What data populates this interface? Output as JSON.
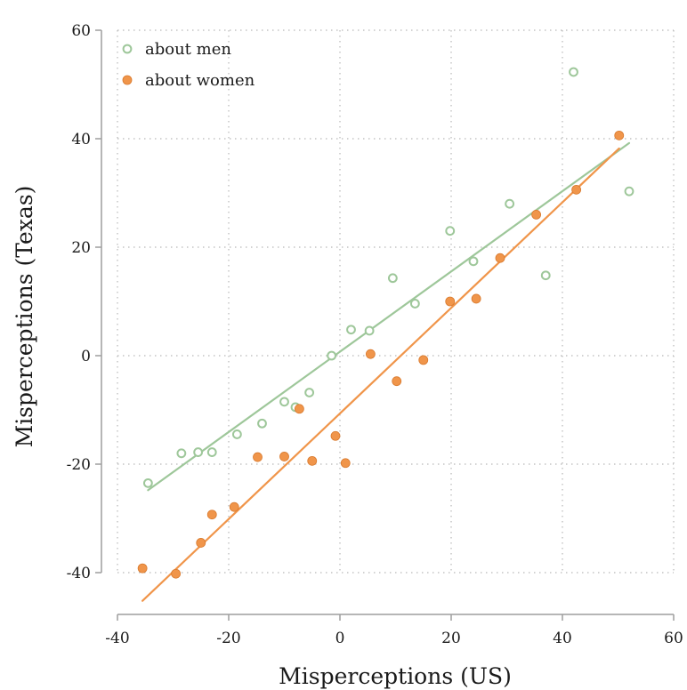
{
  "chart_data": {
    "type": "scatter",
    "xlabel": "Misperceptions (US)",
    "ylabel": "Misperceptions (Texas)",
    "xlim": [
      -40,
      60
    ],
    "ylim": [
      -40,
      60
    ],
    "xticks": [
      -40,
      -20,
      0,
      20,
      40,
      60
    ],
    "yticks": [
      -40,
      -20,
      0,
      20,
      40,
      60
    ],
    "grid": true,
    "legend_position": "top-left",
    "series": [
      {
        "name": "about men",
        "marker": "hollow-circle",
        "color": "#9ec79a",
        "points": [
          [
            -34.5,
            -23.5
          ],
          [
            -28.5,
            -18
          ],
          [
            -25.5,
            -17.8
          ],
          [
            -23,
            -17.8
          ],
          [
            -18.5,
            -14.5
          ],
          [
            -14,
            -12.5
          ],
          [
            -10,
            -8.5
          ],
          [
            -8,
            -9.5
          ],
          [
            -5.5,
            -6.8
          ],
          [
            -1.5,
            0
          ],
          [
            2,
            4.8
          ],
          [
            5.3,
            4.6
          ],
          [
            9.5,
            14.3
          ],
          [
            13.5,
            9.6
          ],
          [
            19.8,
            23
          ],
          [
            24,
            17.4
          ],
          [
            30.5,
            28
          ],
          [
            37,
            14.8
          ],
          [
            42,
            52.3
          ],
          [
            52,
            30.3
          ]
        ],
        "fit": [
          [
            -34.5,
            -24.8
          ],
          [
            52,
            39.2
          ]
        ]
      },
      {
        "name": "about women",
        "marker": "filled-circle",
        "color": "#f0954a",
        "points": [
          [
            -35.5,
            -39.2
          ],
          [
            -29.5,
            -40.2
          ],
          [
            -25,
            -34.5
          ],
          [
            -23,
            -29.3
          ],
          [
            -19,
            -27.9
          ],
          [
            -14.8,
            -18.7
          ],
          [
            -10,
            -18.6
          ],
          [
            -7.3,
            -9.8
          ],
          [
            -5,
            -19.4
          ],
          [
            -0.8,
            -14.8
          ],
          [
            1,
            -19.8
          ],
          [
            5.5,
            0.3
          ],
          [
            10.2,
            -4.7
          ],
          [
            15,
            -0.8
          ],
          [
            19.8,
            10
          ],
          [
            24.5,
            10.5
          ],
          [
            28.8,
            18
          ],
          [
            35.3,
            26
          ],
          [
            42.5,
            30.6
          ],
          [
            50.2,
            40.6
          ]
        ],
        "fit": [
          [
            -35.5,
            -45.2
          ],
          [
            50.2,
            38.2
          ]
        ]
      }
    ]
  }
}
